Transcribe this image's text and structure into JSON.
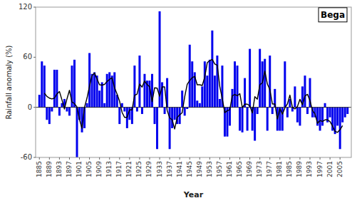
{
  "chart_data": {
    "type": "bar",
    "title": "Bega",
    "xlabel": "Year",
    "ylabel": "Rainfall anomaly (%)",
    "x": [
      1885,
      1886,
      1887,
      1888,
      1889,
      1890,
      1891,
      1892,
      1893,
      1894,
      1895,
      1896,
      1897,
      1898,
      1899,
      1900,
      1901,
      1902,
      1903,
      1904,
      1905,
      1906,
      1907,
      1908,
      1909,
      1910,
      1911,
      1912,
      1913,
      1914,
      1915,
      1916,
      1917,
      1918,
      1919,
      1920,
      1921,
      1922,
      1923,
      1924,
      1925,
      1926,
      1927,
      1928,
      1929,
      1930,
      1931,
      1932,
      1933,
      1934,
      1935,
      1936,
      1937,
      1938,
      1939,
      1940,
      1941,
      1942,
      1943,
      1944,
      1945,
      1946,
      1947,
      1948,
      1949,
      1950,
      1951,
      1952,
      1953,
      1954,
      1955,
      1956,
      1957,
      1958,
      1959,
      1960,
      1961,
      1962,
      1963,
      1964,
      1965,
      1966,
      1967,
      1968,
      1969,
      1970,
      1971,
      1972,
      1973,
      1974,
      1975,
      1976,
      1977,
      1978,
      1979,
      1980,
      1981,
      1982,
      1983,
      1984,
      1985,
      1986,
      1987,
      1988,
      1989,
      1990,
      1991,
      1992,
      1993,
      1994,
      1995,
      1996,
      1997,
      1998,
      1999,
      2000,
      2001,
      2002,
      2003,
      2004,
      2005,
      2006,
      2007,
      2008
    ],
    "series": [
      {
        "type": "bar",
        "color": "#0000EE",
        "values": [
          15,
          55,
          50,
          -15,
          -20,
          -5,
          45,
          45,
          -10,
          5,
          10,
          -5,
          -10,
          50,
          57,
          -60,
          -15,
          -30,
          -25,
          5,
          65,
          40,
          42,
          38,
          20,
          30,
          5,
          40,
          42,
          38,
          42,
          15,
          -20,
          5,
          -5,
          -25,
          -15,
          -20,
          50,
          -5,
          62,
          -8,
          40,
          32,
          32,
          40,
          -20,
          -50,
          115,
          30,
          -8,
          35,
          -50,
          -25,
          -15,
          -20,
          -20,
          20,
          -10,
          -2,
          75,
          55,
          42,
          8,
          5,
          25,
          55,
          38,
          57,
          92,
          38,
          62,
          10,
          50,
          -35,
          -35,
          -22,
          22,
          55,
          50,
          -28,
          -30,
          35,
          -28,
          70,
          -28,
          -40,
          -8,
          70,
          55,
          58,
          -28,
          62,
          -8,
          22,
          -28,
          -28,
          -28,
          55,
          -12,
          10,
          -5,
          25,
          -18,
          -22,
          25,
          38,
          -8,
          35,
          -12,
          -12,
          -22,
          -28,
          -22,
          5,
          -18,
          -12,
          -28,
          -32,
          -22,
          -50,
          -18,
          -12,
          -8
        ]
      },
      {
        "type": "line",
        "color": "#000000",
        "values": [
          null,
          null,
          17,
          13,
          11,
          10,
          11,
          16,
          19,
          9,
          -2,
          10,
          20.4,
          6.4,
          4.4,
          0.4,
          -14.6,
          -25,
          0,
          11,
          25.4,
          38,
          41,
          34,
          27,
          26.6,
          27.4,
          31,
          33.4,
          35.4,
          23.4,
          16,
          7.4,
          -6,
          -12,
          -12,
          -3,
          -3,
          14.4,
          15.8,
          27.8,
          24.2,
          31.6,
          27.2,
          24.8,
          6.8,
          23.4,
          23,
          13.4,
          24.4,
          24.4,
          -3.6,
          -12.6,
          -15,
          -26,
          -12,
          -9,
          -6.4,
          12.6,
          27.6,
          32,
          35.6,
          37,
          27,
          27,
          26.2,
          36,
          53.4,
          56,
          57.4,
          51.8,
          50.4,
          25,
          10.4,
          -6.4,
          -4,
          -3,
          14,
          15.4,
          13.8,
          16.4,
          -0.2,
          3.8,
          3.8,
          1.8,
          -6.8,
          12.8,
          9.8,
          27,
          29.4,
          43.4,
          27.8,
          21.2,
          4,
          4,
          -14,
          -1.4,
          -8.2,
          -0.6,
          4,
          14.6,
          0,
          -2,
          1,
          9.6,
          3,
          13.6,
          15.6,
          8.2,
          -3.8,
          -7.8,
          -19.2,
          -15.8,
          -17,
          -15,
          -15,
          -17,
          -22.4,
          -28.8,
          -30,
          -26.8,
          -22,
          null,
          null
        ]
      }
    ],
    "xlim": [
      1883.5,
      2009.5
    ],
    "xticks": [
      1885,
      1889,
      1893,
      1897,
      1901,
      1905,
      1909,
      1913,
      1917,
      1921,
      1925,
      1929,
      1933,
      1937,
      1941,
      1945,
      1949,
      1953,
      1957,
      1961,
      1965,
      1969,
      1973,
      1977,
      1981,
      1985,
      1989,
      1993,
      1997,
      2001,
      2005
    ],
    "ylim": [
      -60,
      120
    ],
    "yticks": [
      -60,
      0,
      60,
      120
    ],
    "grid": false
  }
}
